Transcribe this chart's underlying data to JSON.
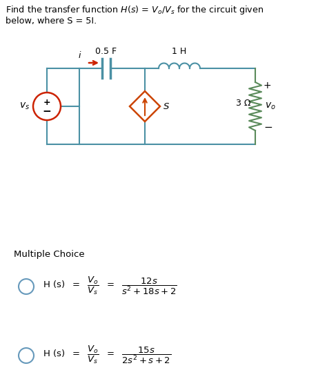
{
  "title_line1": "Find the transfer function $H(s) = V_o/V_s$ for the circuit given",
  "title_line2": "below, where S = 5I.",
  "bg_color_top": "#ffffff",
  "bg_color_bottom": "#ebebeb",
  "multiple_choice_label": "Multiple Choice",
  "wire_color": "#4a90a4",
  "arrow_color": "#cc2200",
  "diamond_color": "#cc4400",
  "resistor_color": "#5a8a5a",
  "vs_color": "#cc2200",
  "black": "#000000"
}
